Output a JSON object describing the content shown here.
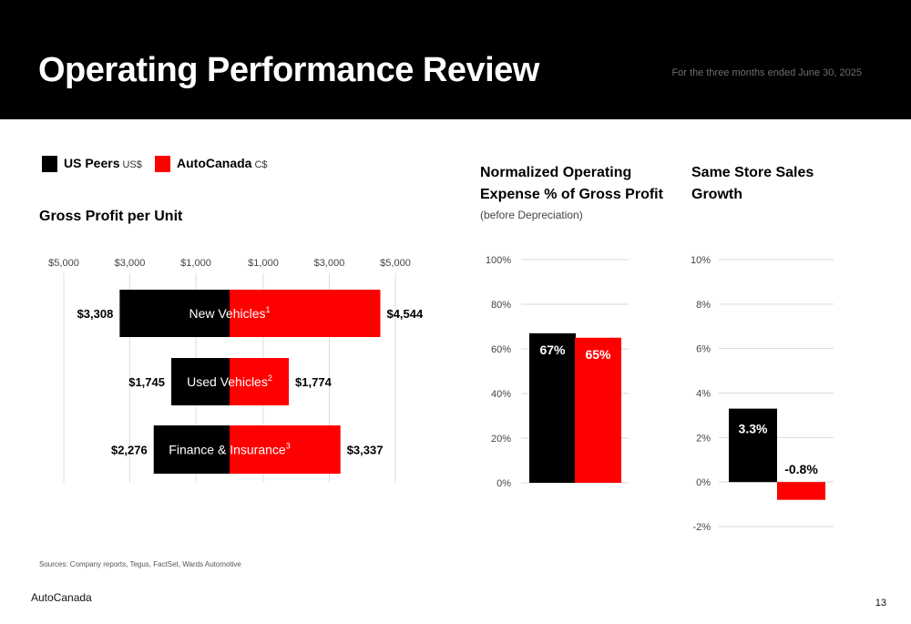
{
  "header": {
    "title": "Operating Performance Review",
    "period": "For the three months ended June 30, 2025"
  },
  "legend": [
    {
      "label": "US Peers",
      "unit": "US$",
      "color": "#000000"
    },
    {
      "label": "AutoCanada",
      "unit": "C$",
      "color": "#ff0000"
    }
  ],
  "footer": {
    "sources": "Sources: Company reports, Tegus, FactSet, Wards Automotive",
    "brand": "AutoCanada",
    "page_number": "13"
  },
  "chart_data": [
    {
      "type": "bar",
      "orientation": "horizontal-diverging",
      "title": "Gross Profit per Unit",
      "tick_labels": [
        "$5,000",
        "$3,000",
        "$1,000",
        "$1,000",
        "$3,000",
        "$5,000"
      ],
      "xlim": [
        -5000,
        5000
      ],
      "grid": true,
      "categories": [
        {
          "name": "New Vehicles",
          "superscript": "1"
        },
        {
          "name": "Used Vehicles",
          "superscript": "2"
        },
        {
          "name": "Finance & Insurance",
          "superscript": "3"
        }
      ],
      "series": [
        {
          "name": "US Peers",
          "values": [
            3308,
            1745,
            2276
          ],
          "labels": [
            "$3,308",
            "$1,745",
            "$2,276"
          ],
          "color": "#000000"
        },
        {
          "name": "AutoCanada",
          "values": [
            4544,
            1774,
            3337
          ],
          "labels": [
            "$4,544",
            "$1,774",
            "$3,337"
          ],
          "color": "#ff0000"
        }
      ]
    },
    {
      "type": "bar",
      "title": "Normalized Operating Expense % of Gross Profit",
      "title_lines": [
        "Normalized Operating",
        "Expense % of Gross Profit"
      ],
      "subtitle": "(before Depreciation)",
      "ylim": [
        0,
        100
      ],
      "tick_values": [
        0,
        20,
        40,
        60,
        80,
        100
      ],
      "tick_labels": [
        "0%",
        "20%",
        "40%",
        "60%",
        "80%",
        "100%"
      ],
      "grid": true,
      "series": [
        {
          "name": "US Peers",
          "values": [
            67
          ],
          "labels": [
            "67%"
          ],
          "color": "#000000"
        },
        {
          "name": "AutoCanada",
          "values": [
            65
          ],
          "labels": [
            "65%"
          ],
          "color": "#ff0000"
        }
      ]
    },
    {
      "type": "bar",
      "title": "Same Store Sales Growth",
      "title_lines": [
        "Same Store Sales",
        "Growth"
      ],
      "ylim": [
        -2,
        10
      ],
      "tick_values": [
        -2,
        0,
        2,
        4,
        6,
        8,
        10
      ],
      "tick_labels": [
        "-2%",
        "0%",
        "2%",
        "4%",
        "6%",
        "8%",
        "10%"
      ],
      "grid": true,
      "series": [
        {
          "name": "US Peers",
          "values": [
            3.3
          ],
          "labels": [
            "3.3%"
          ],
          "color": "#000000"
        },
        {
          "name": "AutoCanada",
          "values": [
            -0.8
          ],
          "labels": [
            "-0.8%"
          ],
          "color": "#ff0000"
        }
      ]
    }
  ]
}
